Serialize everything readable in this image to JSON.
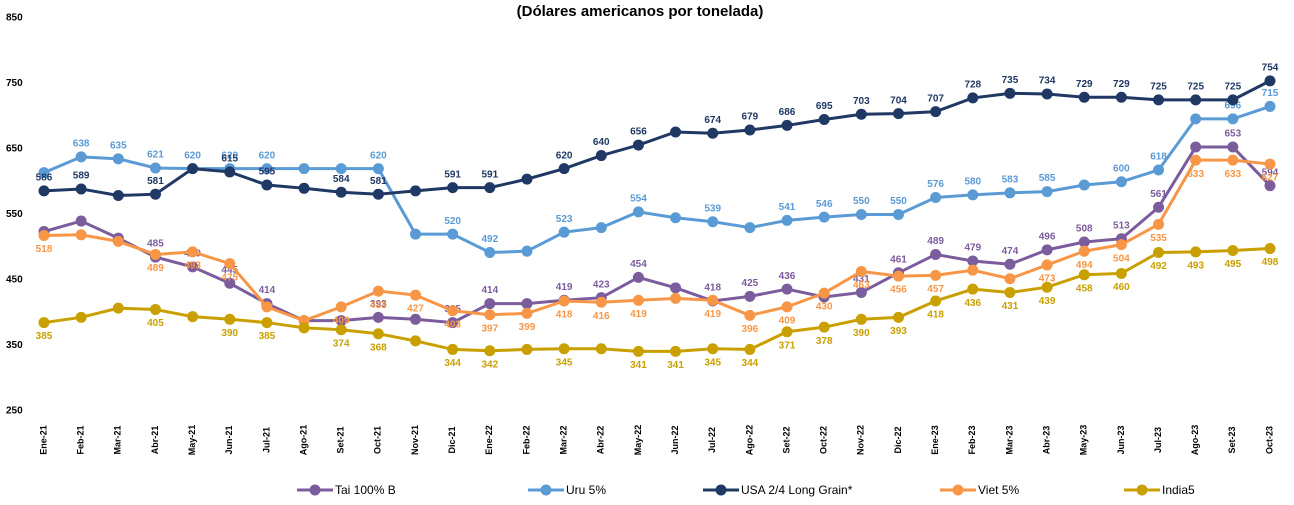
{
  "chart_data": {
    "type": "line",
    "title": "(Dólares americanos por tonelada)",
    "categories": [
      "Ene-21",
      "Feb-21",
      "Mar-21",
      "Abr-21",
      "May-21",
      "Jun-21",
      "Jul-21",
      "Ago-21",
      "Set-21",
      "Oct-21",
      "Nov-21",
      "Dic-21",
      "Ene-22",
      "Feb-22",
      "Mar-22",
      "Abr-22",
      "May-22",
      "Jun-22",
      "Jul-22",
      "Ago-22",
      "Set-22",
      "Oct-22",
      "Nov-22",
      "Dic-22",
      "Ene-23",
      "Feb-23",
      "Mar-23",
      "Abr-23",
      "May-23",
      "Jun-23",
      "Jul-23",
      "Ago-23",
      "Set-23",
      "Oct-23"
    ],
    "ylim": [
      250,
      850
    ],
    "yticks": [
      250,
      350,
      450,
      550,
      650,
      750,
      850
    ],
    "grid": false,
    "legend": "bottom",
    "series": [
      {
        "name": "Tai 100% B",
        "color": "#7b5c9c",
        "values": [
          524,
          540,
          514,
          485,
          470,
          445,
          414,
          388,
          388,
          393,
          390,
          385,
          414,
          414,
          419,
          423,
          454,
          438,
          418,
          425,
          436,
          424,
          431,
          461,
          489,
          479,
          474,
          496,
          508,
          513,
          561,
          653,
          653,
          594
        ],
        "value_labels": [
          null,
          null,
          null,
          "485",
          "470",
          "445",
          "414",
          null,
          null,
          "393",
          null,
          "385",
          "414",
          null,
          "419",
          "423",
          "454",
          null,
          "418",
          "425",
          "436",
          null,
          "431",
          "461",
          "489",
          "479",
          "474",
          "496",
          "508",
          "513",
          "561",
          null,
          "653",
          "594"
        ]
      },
      {
        "name": "Uru 5%",
        "color": "#5b9bd5",
        "values": [
          614,
          638,
          635,
          621,
          620,
          620,
          620,
          620,
          620,
          620,
          520,
          520,
          492,
          494,
          523,
          530,
          554,
          545,
          539,
          530,
          541,
          546,
          550,
          550,
          576,
          580,
          583,
          585,
          595,
          600,
          618,
          696,
          696,
          715
        ],
        "value_labels": [
          null,
          "638",
          "635",
          "621",
          "620",
          "620",
          "620",
          null,
          null,
          "620",
          null,
          "520",
          "492",
          null,
          "523",
          null,
          "554",
          null,
          "539",
          null,
          "541",
          "546",
          "550",
          "550",
          "576",
          "580",
          "583",
          "585",
          null,
          "600",
          "618",
          null,
          "696",
          "715"
        ]
      },
      {
        "name": "USA 2/4 Long Grain*",
        "color": "#1f3864",
        "values": [
          586,
          589,
          579,
          581,
          620,
          615,
          595,
          590,
          584,
          581,
          586,
          591,
          591,
          604,
          620,
          640,
          656,
          676,
          674,
          679,
          686,
          695,
          703,
          704,
          707,
          728,
          735,
          734,
          729,
          729,
          725,
          725,
          725,
          754
        ],
        "value_labels": [
          "586",
          "589",
          null,
          "581",
          null,
          "615",
          "595",
          null,
          "584",
          "581",
          null,
          "591",
          "591",
          null,
          "620",
          "640",
          "656",
          null,
          "674",
          "679",
          "686",
          "695",
          "703",
          "704",
          "707",
          "728",
          "735",
          "734",
          "729",
          "729",
          "725",
          "725",
          "725",
          "754"
        ]
      },
      {
        "name": "Viet 5%",
        "color": "#f79646",
        "values": [
          518,
          519,
          509,
          489,
          493,
          475,
          409,
          388,
          409,
          433,
          427,
          403,
          397,
          399,
          418,
          416,
          419,
          422,
          419,
          396,
          409,
          430,
          463,
          456,
          457,
          465,
          452,
          473,
          494,
          504,
          535,
          633,
          633,
          627
        ],
        "value_labels": [
          "518",
          null,
          null,
          "489",
          "493",
          "475",
          null,
          null,
          "409",
          "433",
          "427",
          "403",
          "397",
          "399",
          "418",
          "416",
          "419",
          null,
          "419",
          "396",
          "409",
          "430",
          "463",
          "456",
          "457",
          null,
          null,
          "473",
          "494",
          "504",
          "535",
          "633",
          "633",
          "627"
        ]
      },
      {
        "name": "India5",
        "color": "#c9a000",
        "values": [
          385,
          393,
          407,
          405,
          394,
          390,
          385,
          377,
          374,
          368,
          357,
          344,
          342,
          344,
          345,
          345,
          341,
          341,
          345,
          344,
          371,
          378,
          390,
          393,
          418,
          436,
          431,
          439,
          458,
          460,
          492,
          493,
          495,
          498
        ],
        "value_labels": [
          "385",
          null,
          null,
          "405",
          null,
          "390",
          "385",
          null,
          "374",
          "368",
          null,
          "344",
          "342",
          null,
          "345",
          null,
          "341",
          "341",
          "345",
          "344",
          "371",
          "378",
          "390",
          "393",
          "418",
          "436",
          "431",
          "439",
          "458",
          "460",
          "492",
          "493",
          "495",
          "498"
        ]
      }
    ]
  }
}
